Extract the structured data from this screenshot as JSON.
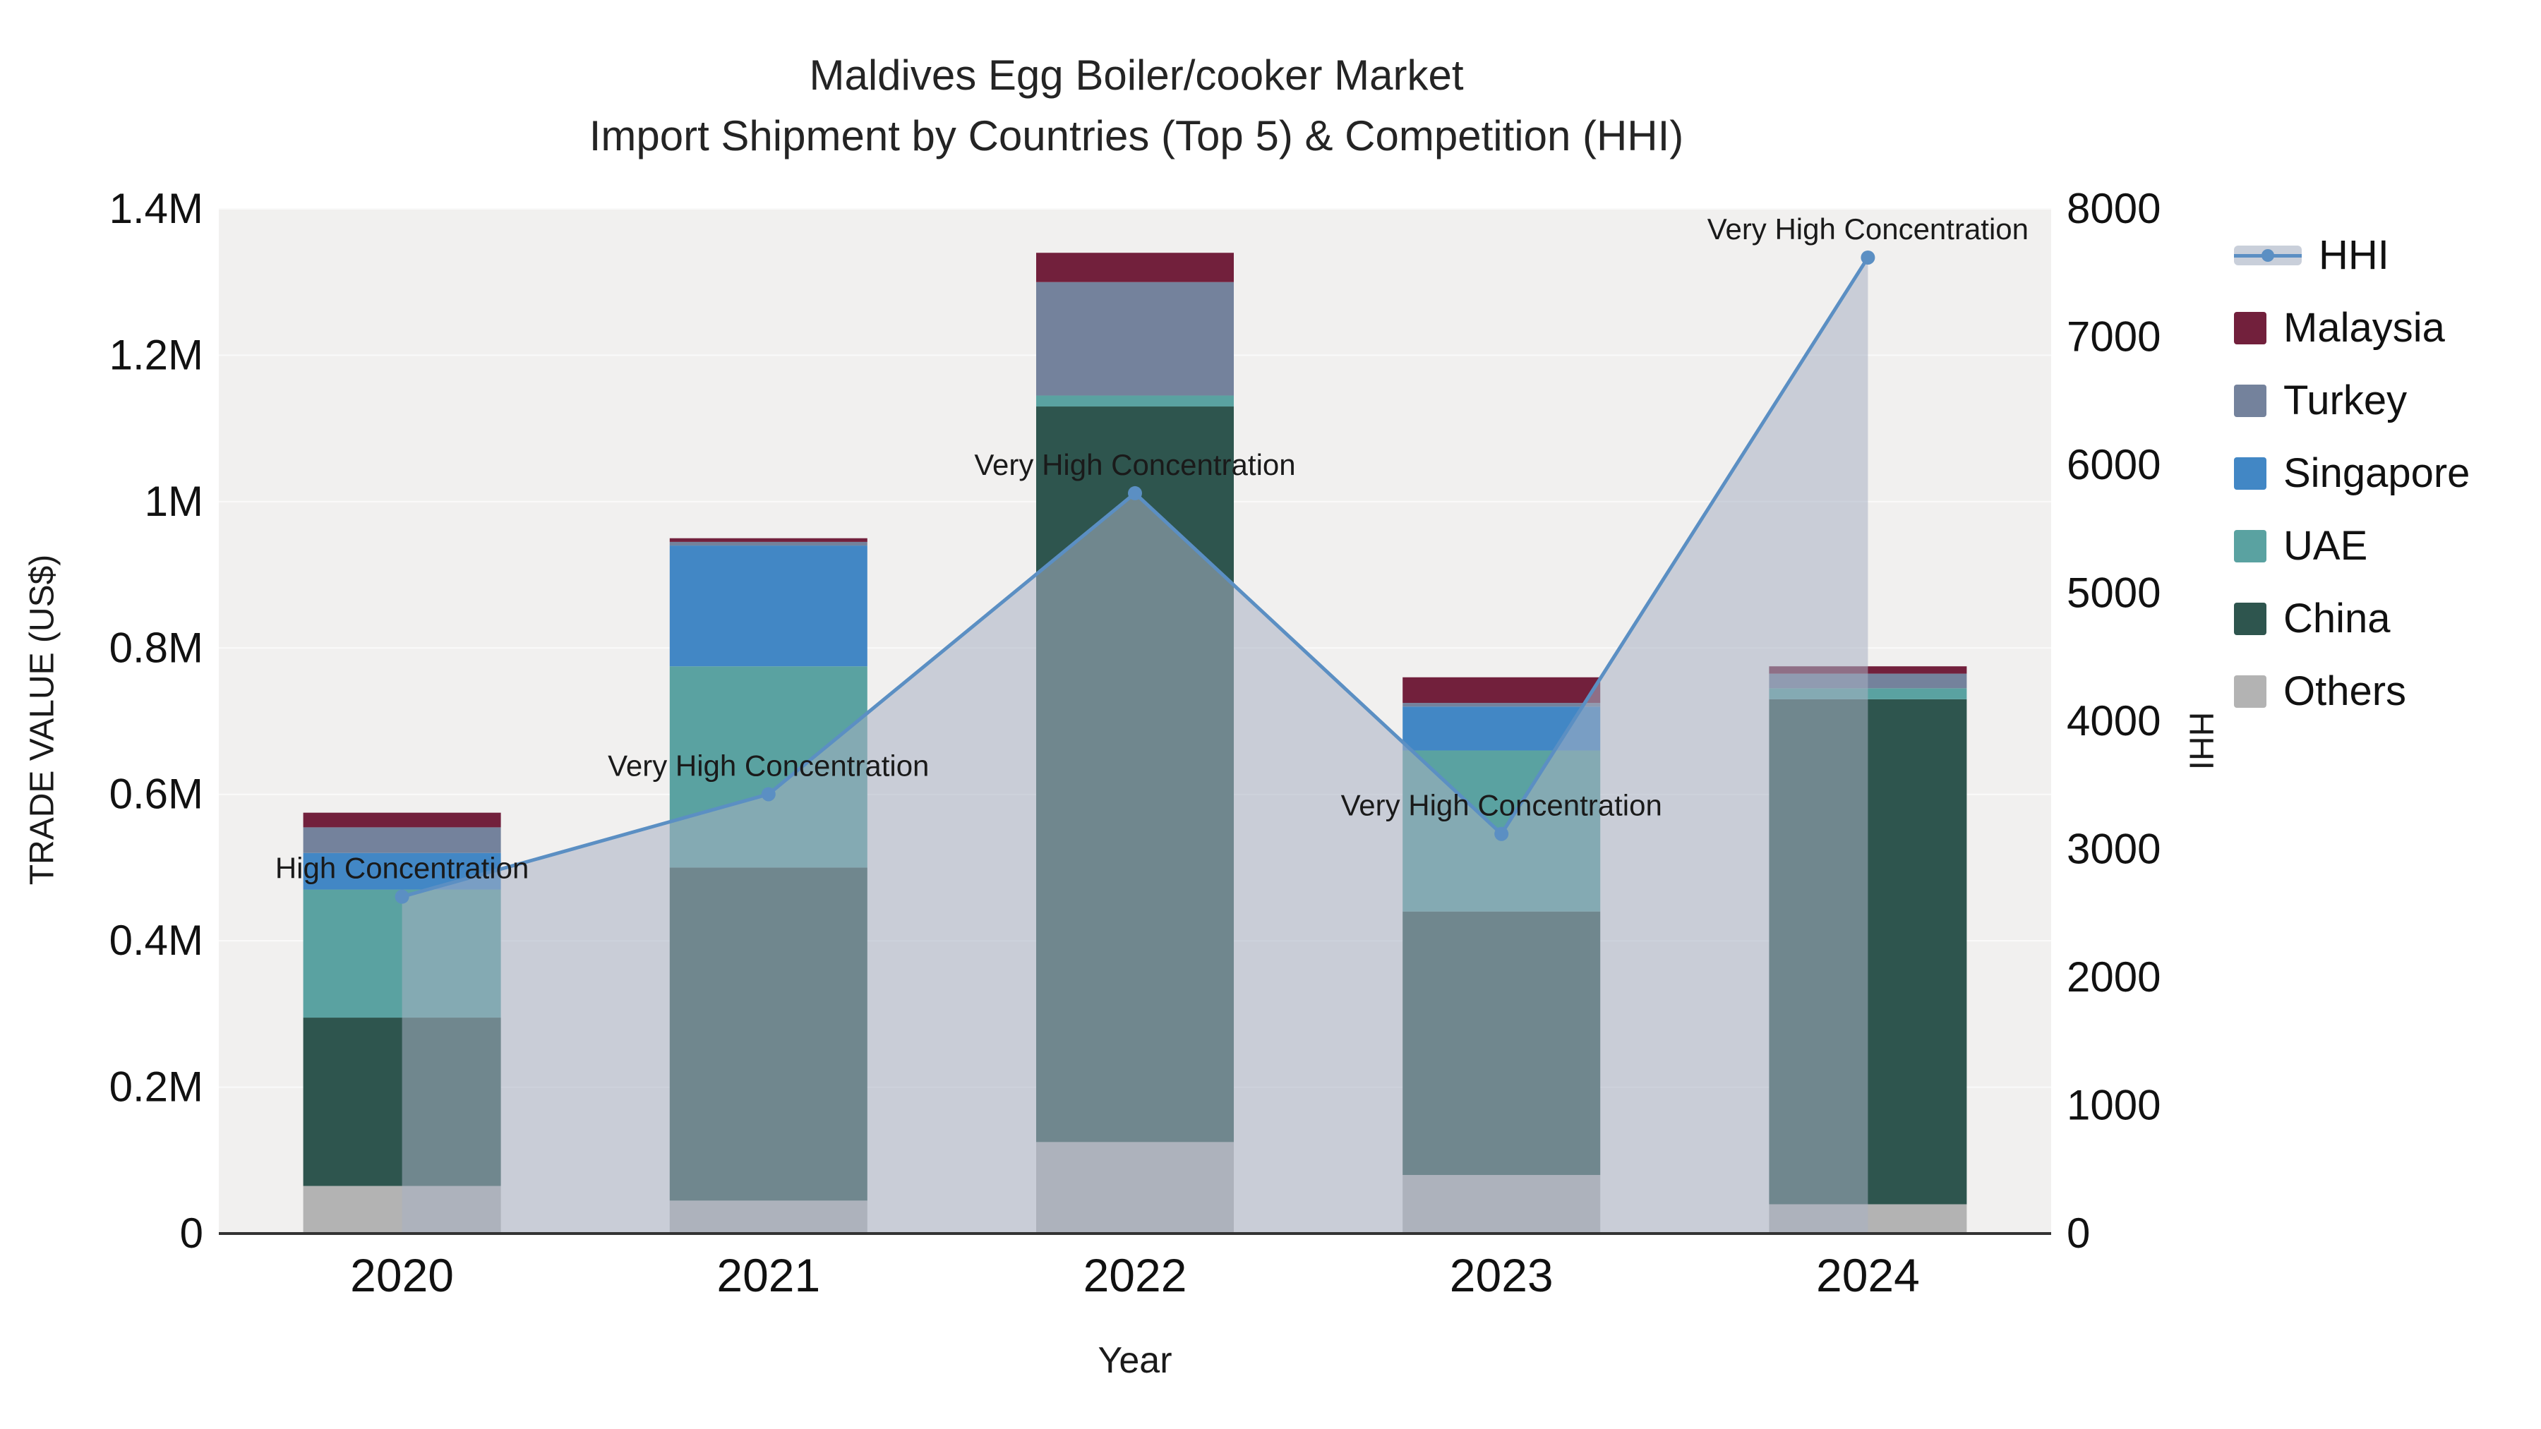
{
  "chart_data": {
    "type": "bar",
    "subtype": "stacked-bars-with-hhi-line-area",
    "title": "Maldives Egg Boiler/cooker Market",
    "subtitle": "Import Shipment by Countries (Top 5) & Competition (HHI)",
    "xlabel": "Year",
    "ylabel_left": "TRADE VALUE (US$)",
    "ylabel_right": "HHI",
    "categories": [
      "2020",
      "2021",
      "2022",
      "2023",
      "2024"
    ],
    "bar_series": [
      {
        "name": "Others",
        "color": "#b3b3b3",
        "values": [
          65000,
          45000,
          125000,
          80000,
          40000
        ]
      },
      {
        "name": "China",
        "color": "#2e554e",
        "values": [
          230000,
          455000,
          1005000,
          360000,
          690000
        ]
      },
      {
        "name": "UAE",
        "color": "#5aa2a1",
        "values": [
          175000,
          275000,
          15000,
          220000,
          15000
        ]
      },
      {
        "name": "Singapore",
        "color": "#4287c5",
        "values": [
          50000,
          165000,
          0,
          60000,
          0
        ]
      },
      {
        "name": "Turkey",
        "color": "#74829c",
        "values": [
          35000,
          5000,
          155000,
          5000,
          20000
        ]
      },
      {
        "name": "Malaysia",
        "color": "#72203c",
        "values": [
          20000,
          5000,
          40000,
          35000,
          10000
        ]
      }
    ],
    "line_series": {
      "name": "HHI",
      "color": "#5b8fc3",
      "area_color": "rgba(167,176,194,0.55)",
      "values": [
        2630,
        3430,
        5780,
        3120,
        7620
      ]
    },
    "annotations": [
      "High Concentration",
      "Very High Concentration",
      "Very High Concentration",
      "Very High Concentration",
      "Very High Concentration"
    ],
    "y_left": {
      "min": 0,
      "max": 1400000,
      "ticks": [
        "0",
        "0.2M",
        "0.4M",
        "0.6M",
        "0.8M",
        "1M",
        "1.2M",
        "1.4M"
      ]
    },
    "y_right": {
      "min": 0,
      "max": 8000,
      "ticks": [
        "0",
        "1000",
        "2000",
        "3000",
        "4000",
        "5000",
        "6000",
        "7000",
        "8000"
      ]
    },
    "legend": [
      "HHI",
      "Malaysia",
      "Turkey",
      "Singapore",
      "UAE",
      "China",
      "Others"
    ],
    "plot_background": "#f1f0ef",
    "axis_line_color": "#333333"
  }
}
